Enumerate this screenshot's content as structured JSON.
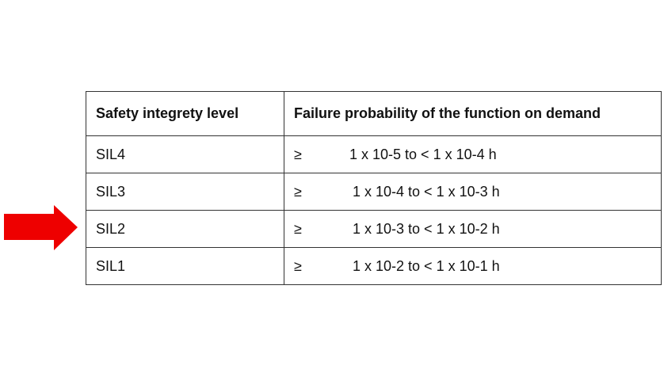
{
  "arrow": {
    "color": "#ee0000",
    "icon": "right-arrow",
    "points_to": "SIL2"
  },
  "table": {
    "headers": [
      "Safety integrety level",
      "Failure probability of the function on demand"
    ],
    "rows": [
      {
        "level": "SIL4",
        "symbol": "≥",
        "range": "1 x 10-5 to < 1 x 10-4 h"
      },
      {
        "level": "SIL3",
        "symbol": "≥",
        "range": "1 x 10-4 to < 1 x 10-3 h"
      },
      {
        "level": "SIL2",
        "symbol": "≥",
        "range": "1 x 10-3 to < 1 x 10-2 h"
      },
      {
        "level": "SIL1",
        "symbol": "≥",
        "range": "1 x 10-2 to < 1 x 10-1 h"
      }
    ]
  }
}
